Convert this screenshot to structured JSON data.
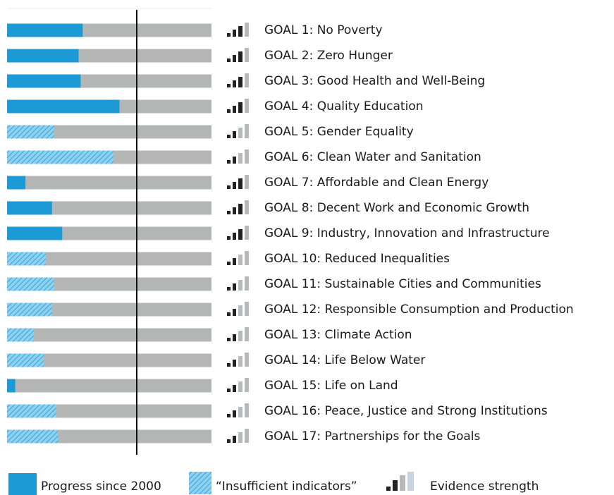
{
  "chart_data": {
    "type": "progress-bar",
    "categories": [
      "GOAL 1: No Poverty",
      "GOAL 2: Zero Hunger",
      "GOAL 3: Good Health and Well-Being",
      "GOAL 4: Quality Education",
      "GOAL 5: Gender Equality",
      "GOAL 6: Clean Water and Sanitation",
      "GOAL 7: Affordable and Clean Energy",
      "GOAL 8: Decent Work and Economic Growth",
      "GOAL 9: Industry, Innovation and Infrastructure",
      "GOAL 10: Reduced Inequalities",
      "GOAL 11: Sustainable Cities and Communities",
      "GOAL 12: Responsible Consumption and Production",
      "GOAL 13: Climate Action",
      "GOAL 14: Life Below Water",
      "GOAL 15: Life on Land",
      "GOAL 16: Peace, Justice and Strong Institutions",
      "GOAL 17: Partnerships for the  Goals"
    ],
    "values": [
      37,
      35,
      36,
      55,
      23,
      52,
      9,
      22,
      27,
      19,
      23,
      22,
      13,
      18,
      4,
      24,
      25
    ],
    "insufficient": [
      false,
      false,
      false,
      false,
      true,
      true,
      false,
      false,
      false,
      true,
      true,
      true,
      true,
      true,
      false,
      true,
      true
    ],
    "evidence": [
      3,
      3,
      3,
      3,
      2,
      2,
      3,
      3,
      3,
      2,
      2,
      2,
      2,
      2,
      2,
      2,
      2
    ],
    "xlim": [
      0,
      100
    ],
    "color": "#1b9ad6",
    "track_color": "#b4b6b5",
    "legend": {
      "progress": "Progress since 2000",
      "insufficient": "“Insufficient indicators”",
      "evidence": "Evidence strength"
    }
  }
}
